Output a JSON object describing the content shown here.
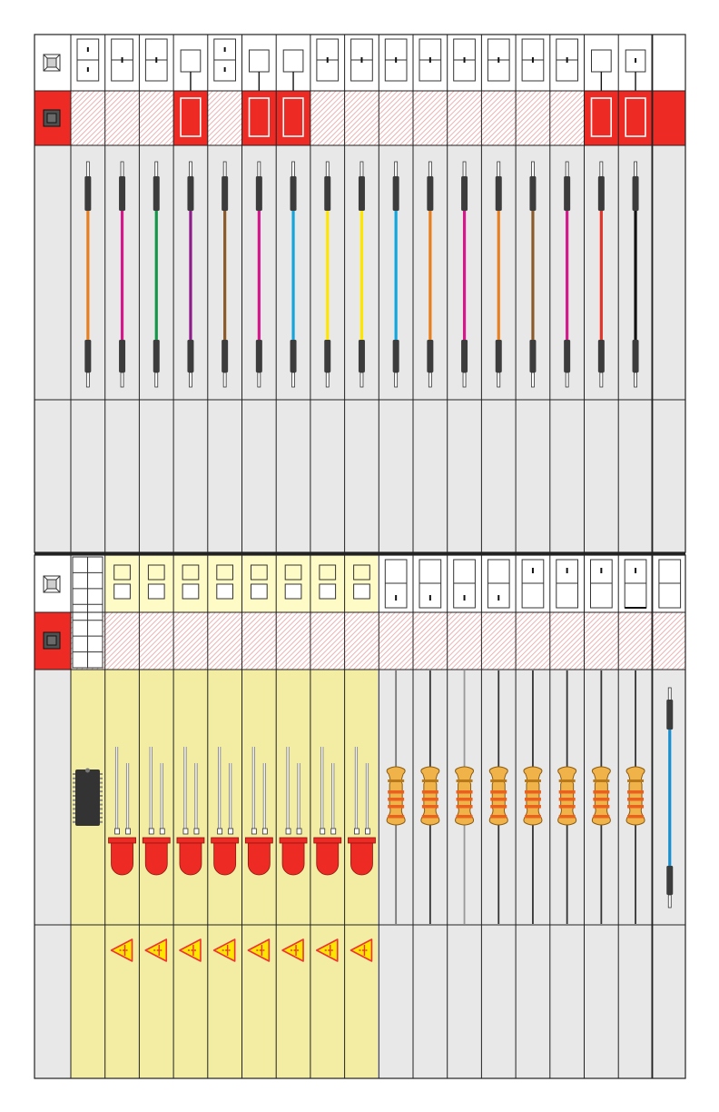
{
  "colors": {
    "frame": "#222222",
    "panel": "#e8e8e8",
    "breakout_bg": "#f2eda3",
    "tag_bg": "#fffbc6",
    "status_red": "#ee2a24",
    "hatch": "#e8a0a0",
    "header_dark": "#505050",
    "resistor_body": "#f0b34a",
    "resistor_band": "#e9611d",
    "led_red": "#ee2a24",
    "warning_yellow": "#ffe600",
    "ic_body": "#333333"
  },
  "top_bank": {
    "columns": [
      {
        "label_style": "split-marked",
        "status": "hatched",
        "wire_color": "#e87f1e"
      },
      {
        "label_style": "split",
        "status": "hatched",
        "wire_color": "#d6178c"
      },
      {
        "label_style": "split",
        "status": "hatched",
        "wire_color": "#149549"
      },
      {
        "label_style": "box-linked",
        "status": "red-slot",
        "wire_color": "#8c1d89"
      },
      {
        "label_style": "split-marked",
        "status": "hatched",
        "wire_color": "#8b5a2b"
      },
      {
        "label_style": "box-linked",
        "status": "red-slot",
        "wire_color": "#d6178c"
      },
      {
        "label_style": "box-linked",
        "status": "red-slot",
        "wire_color": "#14a5dc"
      },
      {
        "label_style": "split",
        "status": "hatched",
        "wire_color": "#ffe600"
      },
      {
        "label_style": "split",
        "status": "hatched",
        "wire_color": "#ffe600"
      },
      {
        "label_style": "split",
        "status": "hatched",
        "wire_color": "#14a5dc"
      },
      {
        "label_style": "split",
        "status": "hatched",
        "wire_color": "#e87f1e"
      },
      {
        "label_style": "split",
        "status": "hatched",
        "wire_color": "#d6178c"
      },
      {
        "label_style": "split",
        "status": "hatched",
        "wire_color": "#e87f1e"
      },
      {
        "label_style": "split",
        "status": "hatched",
        "wire_color": "#8b5a2b"
      },
      {
        "label_style": "split",
        "status": "hatched",
        "wire_color": "#d6178c"
      },
      {
        "label_style": "box-linked",
        "status": "red-slot",
        "wire_color": "#e0352a"
      },
      {
        "label_style": "box-linked-marked",
        "status": "red-slot",
        "wire_color": "#111111"
      },
      {
        "label_style": "blank",
        "status": "red",
        "wire_color": ""
      }
    ]
  },
  "bottom_bank": {
    "ic_grid_rows": 7,
    "led_count": 8,
    "resistor_count": 8,
    "resistor_label_style": [
      "dash-bottom",
      "dash-bottom",
      "dash-bottom",
      "dash-bottom",
      "dash-top",
      "dash-top",
      "dash-top",
      "dash-top-thick"
    ],
    "resistor_lead_color": [
      "#777777",
      "#333333",
      "#999999",
      "#333333",
      "#333333",
      "#333333",
      "#333333",
      "#333333"
    ],
    "jumper_wire_color": "#1a8fd0"
  }
}
